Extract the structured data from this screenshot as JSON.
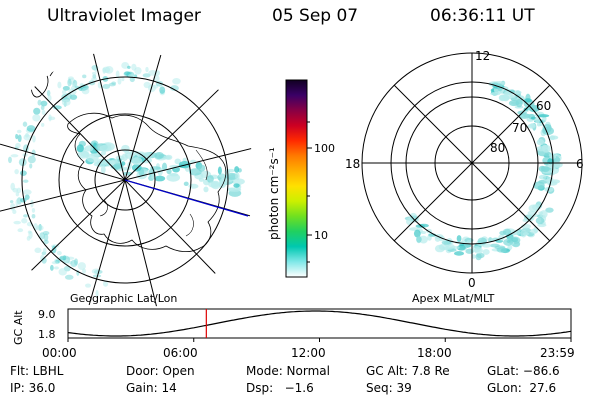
{
  "header": {
    "instrument": "Ultraviolet Imager",
    "date": "05 Sep 07",
    "time": "06:36:11 UT"
  },
  "left_panel": {
    "label": "Geographic Lat/Lon"
  },
  "right_panel": {
    "label": "Apex MLat/MLT",
    "mlt_labels": [
      "12",
      "18",
      "6",
      "0"
    ],
    "lat_labels": [
      "60",
      "70",
      "80"
    ]
  },
  "colorbar": {
    "unit_label": "photon cm⁻²s⁻¹",
    "tick_labels": [
      "100",
      "10"
    ],
    "colors": [
      "#110022",
      "#3a0066",
      "#880044",
      "#cc0022",
      "#ff2a00",
      "#ff7a00",
      "#ffb000",
      "#ffe000",
      "#ccf000",
      "#70e020",
      "#20d060",
      "#00c8b0",
      "#80e8e8",
      "#ffffff"
    ]
  },
  "altitude_plot": {
    "ylabel": "GC Alt",
    "y_ticks": [
      "9.0",
      "1.8"
    ],
    "x_ticks": [
      "00:00",
      "06:00",
      "12:00",
      "18:00",
      "23:59"
    ],
    "current_time_hours": 6.6
  },
  "footer": {
    "filter": "Flt: LBHL",
    "door": "Door: Open",
    "mode": "Mode: Normal",
    "gc_alt": "GC Alt: 7.8 Re",
    "glat": "GLat: −86.6",
    "ip": "IP: 36.0",
    "gain": "Gain: 14",
    "dsp": "Dsp:   −1.6",
    "seq": "Seq: 39",
    "glon": "GLon:  27.6"
  },
  "colors": {
    "emission_low": "#b8ecec",
    "emission_mid": "#7fdada",
    "emission_high": "#3fc8c8",
    "time_marker": "#dd0000",
    "projection_line": "#0000cc"
  }
}
